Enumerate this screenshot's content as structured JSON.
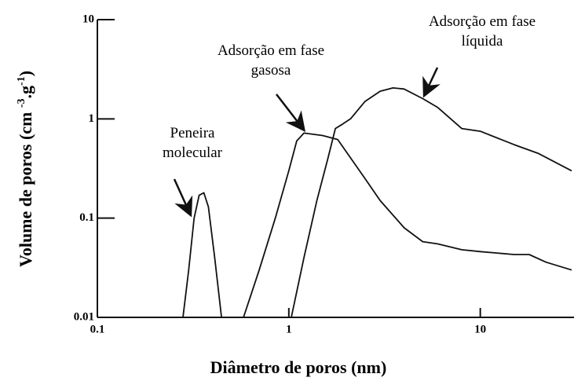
{
  "chart_data": {
    "type": "line",
    "xlabel": "Diâmetro de poros (nm)",
    "ylabel_parts": [
      "Volume de poros (cm ",
      "-3",
      ".g",
      "-1",
      ")"
    ],
    "xscale": "log",
    "yscale": "log",
    "xlim": [
      0.1,
      30
    ],
    "ylim": [
      0.01,
      10
    ],
    "xticks": [
      0.1,
      1,
      10
    ],
    "yticks": [
      0.01,
      0.1,
      1,
      10
    ],
    "annotations": [
      {
        "lines": [
          "Peneira",
          "molecular"
        ]
      },
      {
        "lines": [
          "Adsorção em fase",
          "gasosa"
        ]
      },
      {
        "lines": [
          "Adsorção em fase",
          "líquida"
        ]
      }
    ],
    "series": [
      {
        "color": "#111111",
        "x": [
          0.28,
          0.3,
          0.32,
          0.34,
          0.36,
          0.38,
          0.41,
          0.445
        ],
        "values": [
          0.01,
          0.03,
          0.1,
          0.17,
          0.18,
          0.13,
          0.04,
          0.01
        ]
      },
      {
        "color": "#111111",
        "x": [
          0.58,
          0.7,
          0.85,
          1.0,
          1.1,
          1.2,
          1.5,
          1.8,
          2.5,
          3,
          4,
          5,
          6,
          8,
          10,
          15,
          18,
          22,
          30
        ],
        "values": [
          0.01,
          0.03,
          0.1,
          0.3,
          0.6,
          0.72,
          0.68,
          0.62,
          0.25,
          0.15,
          0.08,
          0.058,
          0.055,
          0.048,
          0.046,
          0.043,
          0.043,
          0.036,
          0.03
        ]
      },
      {
        "color": "#111111",
        "x": [
          1.03,
          1.2,
          1.4,
          1.6,
          1.75,
          1.9,
          2.1,
          2.5,
          3,
          3.5,
          4,
          5,
          6,
          8,
          10,
          15,
          20,
          30
        ],
        "values": [
          0.01,
          0.04,
          0.15,
          0.4,
          0.8,
          0.88,
          1.0,
          1.5,
          1.9,
          2.05,
          2.0,
          1.6,
          1.3,
          0.8,
          0.75,
          0.55,
          0.45,
          0.3
        ]
      }
    ]
  }
}
